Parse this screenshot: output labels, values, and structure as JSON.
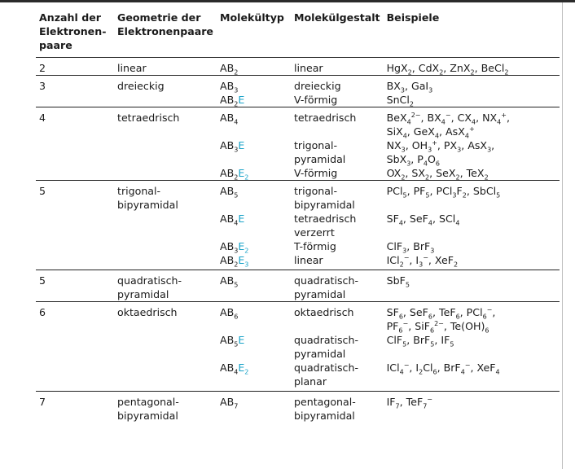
{
  "headers": {
    "col1": [
      "Anzahl der",
      "Elektronen-",
      "paare"
    ],
    "col2": [
      "Geometrie der",
      "Elektronenpaare"
    ],
    "col3": "Molekültyp",
    "col4": "Molekülgestalt",
    "col5": "Beispiele"
  },
  "rows": {
    "r2": {
      "n": "2",
      "geo": "linear",
      "shape": "linear"
    },
    "r3": {
      "n": "3",
      "geo": "dreieckig",
      "shape_a": "dreieckig",
      "shape_b": "V-förmig"
    },
    "r4": {
      "n": "4",
      "geo": "tetraedrisch",
      "shape_a": "tetraedrisch",
      "shape_b": [
        "trigonal-",
        "pyramidal"
      ],
      "shape_c": "V-förmig"
    },
    "r5a": {
      "n": "5",
      "geo": [
        "trigonal-",
        "bipyramidal"
      ],
      "shape_a": [
        "trigonal-",
        "bipyramidal"
      ],
      "shape_b": [
        "tetraedrisch",
        "verzerrt"
      ],
      "shape_c": "T-förmig",
      "shape_d": "linear"
    },
    "r5b": {
      "n": "5",
      "geo": [
        "quadratisch-",
        "pyramidal"
      ],
      "shape": [
        "quadratisch-",
        "pyramidal"
      ]
    },
    "r6": {
      "n": "6",
      "geo": "oktaedrisch",
      "shape_a": "oktaedrisch",
      "shape_b": [
        "quadratisch-",
        "pyramidal"
      ],
      "shape_c": [
        "quadratisch-",
        "planar"
      ]
    },
    "r7": {
      "n": "7",
      "geo": [
        "pentagonal-",
        "bipyramidal"
      ],
      "shape": [
        "pentagonal-",
        "bipyramidal"
      ]
    }
  },
  "accent_color": "#1aa3c8"
}
